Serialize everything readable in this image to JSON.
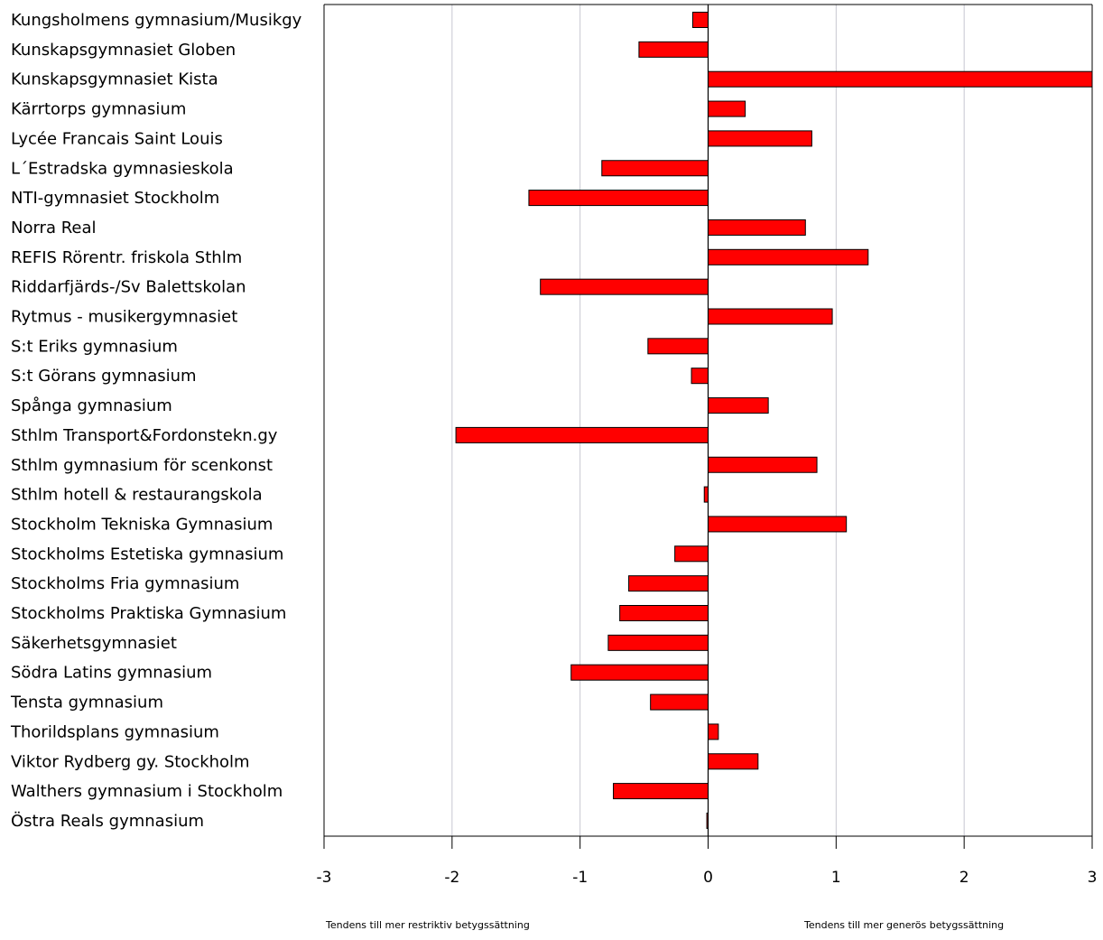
{
  "chart_data": {
    "type": "bar",
    "orientation": "horizontal",
    "categories": [
      "Kungsholmens gymnasium/Musikgy",
      "Kunskapsgymnasiet Globen",
      "Kunskapsgymnasiet Kista",
      "Kärrtorps gymnasium",
      "Lycée Francais Saint Louis",
      "L´Estradska gymnasieskola",
      "NTI-gymnasiet Stockholm",
      "Norra Real",
      "REFIS Rörentr. friskola Sthlm",
      "Riddarfjärds-/Sv Balettskolan",
      "Rytmus - musikergymnasiet",
      "S:t Eriks gymnasium",
      "S:t Görans gymnasium",
      "Spånga gymnasium",
      "Sthlm Transport&Fordonstekn.gy",
      "Sthlm gymnasium för scenkonst",
      "Sthlm hotell & restaurangskola",
      "Stockholm Tekniska Gymnasium",
      "Stockholms Estetiska gymnasium",
      "Stockholms Fria gymnasium",
      "Stockholms Praktiska Gymnasium",
      "Säkerhetsgymnasiet",
      "Södra Latins gymnasium",
      "Tensta gymnasium",
      "Thorildsplans gymnasium",
      "Viktor Rydberg gy. Stockholm",
      "Walthers gymnasium i Stockholm",
      "Östra Reals gymnasium"
    ],
    "values": [
      -0.12,
      -0.54,
      3.0,
      0.29,
      0.81,
      -0.83,
      -1.4,
      0.76,
      1.25,
      -1.31,
      0.97,
      -0.47,
      -0.13,
      0.47,
      -1.97,
      0.85,
      -0.03,
      1.08,
      -0.26,
      -0.62,
      -0.69,
      -0.78,
      -1.07,
      -0.45,
      0.08,
      0.39,
      -0.74,
      -0.01
    ],
    "xlim": [
      -3,
      3
    ],
    "xticks": [
      "-3",
      "-2",
      "-1",
      "0",
      "1",
      "2",
      "3"
    ],
    "xtick_values": [
      -3,
      -2,
      -1,
      0,
      1,
      2,
      3
    ],
    "grid": true,
    "bar_color": "#ff0000",
    "bar_edge_color": "#000000",
    "grid_color": "#c6c6d0",
    "footnote_left": "Tendens till mer restriktiv betygssättning",
    "footnote_right": "Tendens till mer generös betygssättning"
  }
}
